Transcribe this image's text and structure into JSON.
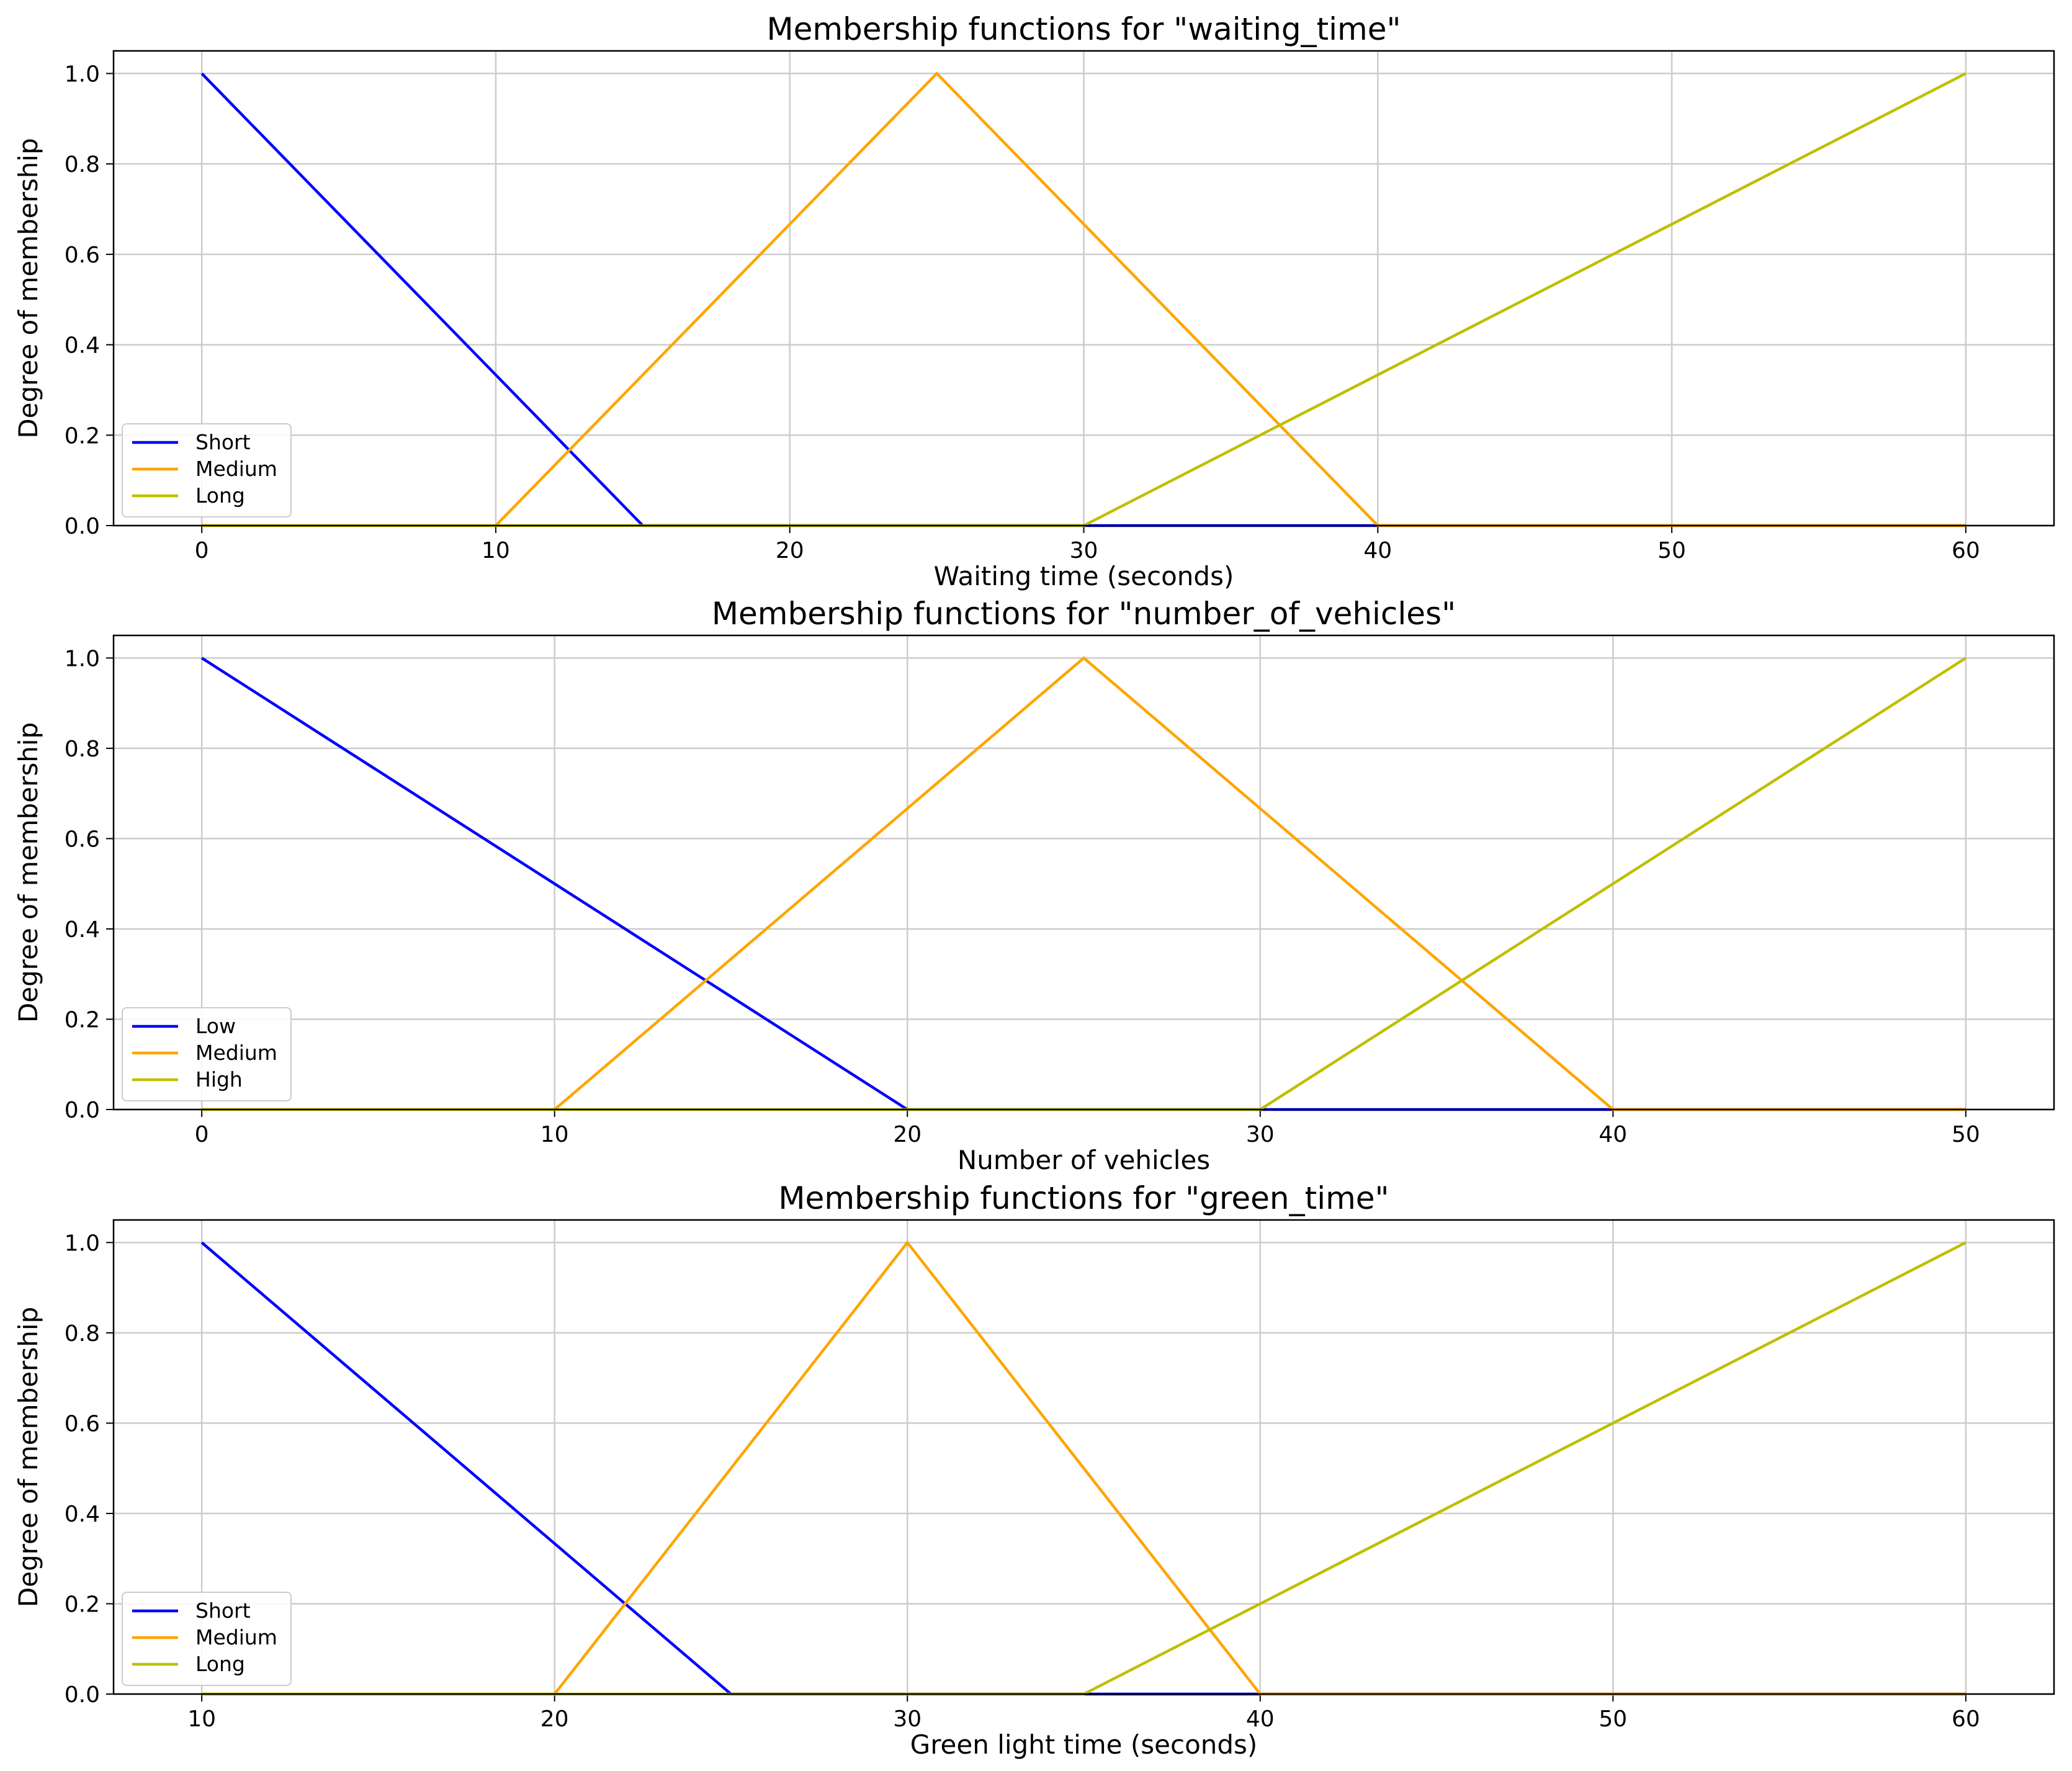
{
  "chart_data": [
    {
      "type": "line",
      "title": "Membership functions for \"waiting_time\"",
      "xlabel": "Waiting time (seconds)",
      "ylabel": "Degree of membership",
      "xlim": [
        -3,
        63
      ],
      "ylim": [
        0,
        1.05
      ],
      "xticks": [
        "0",
        "10",
        "20",
        "30",
        "40",
        "50",
        "60"
      ],
      "yticks": [
        "0.0",
        "0.2",
        "0.4",
        "0.6",
        "0.8",
        "1.0"
      ],
      "grid": true,
      "legend_position": "lower-left",
      "series": [
        {
          "name": "Short",
          "color": "#0000ff",
          "x": [
            0,
            15,
            60
          ],
          "y": [
            1,
            0,
            0
          ]
        },
        {
          "name": "Medium",
          "color": "#ffa500",
          "x": [
            0,
            10,
            25,
            40,
            60
          ],
          "y": [
            0,
            0,
            1,
            0,
            0
          ]
        },
        {
          "name": "Long",
          "color": "#bfbf00",
          "x": [
            0,
            30,
            60
          ],
          "y": [
            0,
            0,
            1
          ]
        }
      ]
    },
    {
      "type": "line",
      "title": "Membership functions for \"number_of_vehicles\"",
      "xlabel": "Number of vehicles",
      "ylabel": "Degree of membership",
      "xlim": [
        -2.5,
        52.5
      ],
      "ylim": [
        0,
        1.05
      ],
      "xticks": [
        "0",
        "10",
        "20",
        "30",
        "40",
        "50"
      ],
      "yticks": [
        "0.0",
        "0.2",
        "0.4",
        "0.6",
        "0.8",
        "1.0"
      ],
      "grid": true,
      "legend_position": "lower-left",
      "series": [
        {
          "name": "Low",
          "color": "#0000ff",
          "x": [
            0,
            20,
            50
          ],
          "y": [
            1,
            0,
            0
          ]
        },
        {
          "name": "Medium",
          "color": "#ffa500",
          "x": [
            0,
            10,
            25,
            40,
            50
          ],
          "y": [
            0,
            0,
            1,
            0,
            0
          ]
        },
        {
          "name": "High",
          "color": "#bfbf00",
          "x": [
            0,
            30,
            50
          ],
          "y": [
            0,
            0,
            1
          ]
        }
      ]
    },
    {
      "type": "line",
      "title": "Membership functions for \"green_time\"",
      "xlabel": "Green light time (seconds)",
      "ylabel": "Degree of membership",
      "xlim": [
        7.5,
        62.5
      ],
      "ylim": [
        0,
        1.05
      ],
      "xticks": [
        "10",
        "20",
        "30",
        "40",
        "50",
        "60"
      ],
      "yticks": [
        "0.0",
        "0.2",
        "0.4",
        "0.6",
        "0.8",
        "1.0"
      ],
      "grid": true,
      "legend_position": "lower-left",
      "series": [
        {
          "name": "Short",
          "color": "#0000ff",
          "x": [
            10,
            25,
            60
          ],
          "y": [
            1,
            0,
            0
          ]
        },
        {
          "name": "Medium",
          "color": "#ffa500",
          "x": [
            10,
            20,
            30,
            40,
            60
          ],
          "y": [
            0,
            0,
            1,
            0,
            0
          ]
        },
        {
          "name": "Long",
          "color": "#bfbf00",
          "x": [
            10,
            35,
            60
          ],
          "y": [
            0,
            0,
            1
          ]
        }
      ]
    }
  ]
}
